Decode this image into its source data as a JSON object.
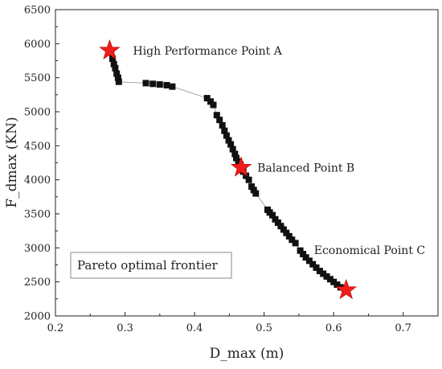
{
  "chart_data": {
    "type": "scatter",
    "xlabel": "D_max (m)",
    "ylabel": "F_dmax (KN)",
    "xlim": [
      0.2,
      0.75
    ],
    "ylim": [
      2000,
      6500
    ],
    "xticks": [
      "0.2",
      "0.3",
      "0.4",
      "0.5",
      "0.6",
      "0.7"
    ],
    "yticks": [
      "2000",
      "2500",
      "3000",
      "3500",
      "4000",
      "4500",
      "5000",
      "5500",
      "6000",
      "6500"
    ],
    "grid": false,
    "legend_text": "Pareto optimal frontier",
    "legend_position": "bottom-left",
    "series": [
      {
        "marker": "square",
        "color": "#111111",
        "line_color": "#9a9a9a",
        "x": [
          0.28,
          0.282,
          0.284,
          0.286,
          0.288,
          0.29,
          0.291,
          0.33,
          0.34,
          0.35,
          0.36,
          0.368,
          0.418,
          0.423,
          0.427,
          0.432,
          0.436,
          0.44,
          0.443,
          0.446,
          0.449,
          0.452,
          0.455,
          0.458,
          0.46,
          0.463,
          0.466,
          0.47,
          0.474,
          0.478,
          0.482,
          0.485,
          0.488,
          0.505,
          0.508,
          0.512,
          0.516,
          0.52,
          0.524,
          0.528,
          0.532,
          0.536,
          0.54,
          0.545,
          0.552,
          0.556,
          0.56,
          0.565,
          0.57,
          0.575,
          0.58,
          0.585,
          0.59,
          0.595,
          0.6,
          0.605,
          0.61
        ],
        "y": [
          5870,
          5780,
          5700,
          5640,
          5560,
          5500,
          5440,
          5420,
          5410,
          5400,
          5390,
          5370,
          5200,
          5150,
          5100,
          4950,
          4880,
          4800,
          4720,
          4650,
          4580,
          4520,
          4450,
          4380,
          4320,
          4270,
          4220,
          4120,
          4060,
          4000,
          3900,
          3850,
          3800,
          3560,
          3520,
          3480,
          3420,
          3370,
          3320,
          3270,
          3220,
          3170,
          3120,
          3070,
          2960,
          2910,
          2860,
          2810,
          2760,
          2710,
          2660,
          2620,
          2580,
          2540,
          2500,
          2460,
          2420
        ]
      }
    ],
    "annotations": [
      {
        "text": "High Performance Point A",
        "x": 0.278,
        "y": 5900,
        "marker": "star",
        "color": "#ee1c1c"
      },
      {
        "text": "Balanced Point B",
        "x": 0.467,
        "y": 4180,
        "marker": "star",
        "color": "#ee1c1c"
      },
      {
        "text": "Economical Point C",
        "x": 0.618,
        "y": 2380,
        "marker": "star",
        "color": "#ee1c1c"
      }
    ]
  }
}
